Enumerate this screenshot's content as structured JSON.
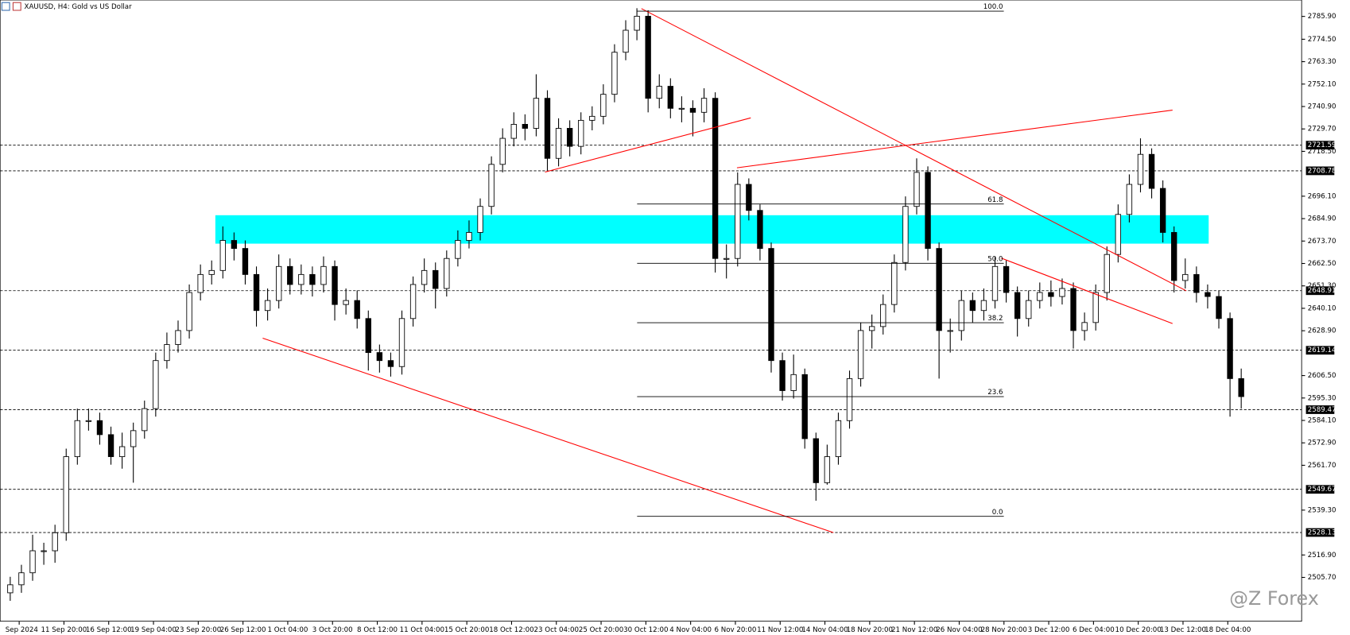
{
  "chart_data": {
    "type": "candlestick",
    "title": "XAUUSD, H4: Gold vs US Dollar",
    "watermark": "@Z Forex",
    "color": "#000000",
    "open": [
      2498,
      2502,
      2508,
      2519,
      2519,
      2528,
      2566,
      2584,
      2584,
      2577,
      2566,
      2571,
      2579,
      2590,
      2614,
      2622,
      2629,
      2648,
      2657,
      2659,
      2674,
      2670,
      2657,
      2639,
      2644,
      2661,
      2652,
      2657,
      2652,
      2661,
      2642,
      2644,
      2635,
      2618,
      2614,
      2611,
      2635,
      2652,
      2659,
      2650,
      2665,
      2674,
      2678,
      2691,
      2712,
      2725,
      2732,
      2730,
      2745,
      2715,
      2730,
      2721,
      2734,
      2736,
      2747,
      2768,
      2779,
      2786,
      2745,
      2751,
      2740,
      2740,
      2738,
      2745,
      2665,
      2665,
      2702,
      2689,
      2670,
      2614,
      2599,
      2607,
      2575,
      2553,
      2566,
      2584,
      2605,
      2629,
      2631,
      2642,
      2663,
      2691,
      2708,
      2670,
      2629,
      2629,
      2644,
      2639,
      2644,
      2661,
      2648,
      2635,
      2644,
      2648,
      2646,
      2650,
      2629,
      2633,
      2648,
      2667,
      2687,
      2702,
      2717,
      2700,
      2678,
      2654,
      2657,
      2648,
      2646,
      2635,
      2605
    ],
    "high": [
      2506,
      2512,
      2527,
      2523,
      2532,
      2570,
      2590,
      2590,
      2588,
      2581,
      2578,
      2583,
      2594,
      2618,
      2628,
      2634,
      2652,
      2662,
      2664,
      2681,
      2678,
      2674,
      2661,
      2650,
      2667,
      2665,
      2662,
      2661,
      2666,
      2664,
      2650,
      2649,
      2639,
      2622,
      2618,
      2639,
      2656,
      2665,
      2663,
      2669,
      2679,
      2684,
      2695,
      2716,
      2730,
      2738,
      2737,
      2757,
      2749,
      2735,
      2734,
      2738,
      2741,
      2752,
      2772,
      2784,
      2790,
      2789,
      2757,
      2755,
      2746,
      2744,
      2750,
      2748,
      2672,
      2708,
      2705,
      2692,
      2673,
      2618,
      2617,
      2610,
      2578,
      2572,
      2588,
      2609,
      2633,
      2637,
      2647,
      2667,
      2696,
      2715,
      2711,
      2673,
      2635,
      2649,
      2648,
      2650,
      2666,
      2664,
      2651,
      2649,
      2653,
      2654,
      2655,
      2653,
      2638,
      2652,
      2671,
      2692,
      2707,
      2725,
      2720,
      2704,
      2681,
      2665,
      2661,
      2652,
      2649,
      2638,
      2610
    ],
    "low": [
      2494,
      2498,
      2504,
      2512,
      2513,
      2524,
      2562,
      2579,
      2572,
      2562,
      2560,
      2553,
      2575,
      2586,
      2610,
      2618,
      2625,
      2644,
      2652,
      2655,
      2664,
      2652,
      2631,
      2634,
      2640,
      2647,
      2647,
      2646,
      2648,
      2634,
      2637,
      2630,
      2609,
      2608,
      2606,
      2607,
      2631,
      2648,
      2640,
      2646,
      2661,
      2670,
      2674,
      2687,
      2708,
      2721,
      2724,
      2726,
      2709,
      2711,
      2716,
      2717,
      2729,
      2732,
      2743,
      2764,
      2774,
      2738,
      2740,
      2735,
      2733,
      2726,
      2733,
      2658,
      2655,
      2661,
      2684,
      2664,
      2608,
      2594,
      2595,
      2570,
      2544,
      2552,
      2562,
      2580,
      2601,
      2620,
      2627,
      2638,
      2659,
      2687,
      2664,
      2605,
      2618,
      2624,
      2633,
      2634,
      2640,
      2643,
      2626,
      2631,
      2640,
      2641,
      2642,
      2620,
      2624,
      2629,
      2644,
      2663,
      2683,
      2698,
      2695,
      2673,
      2648,
      2650,
      2643,
      2640,
      2630,
      2586,
      2590
    ],
    "close": [
      2502,
      2508,
      2519,
      2519,
      2528,
      2566,
      2584,
      2584,
      2577,
      2566,
      2571,
      2579,
      2590,
      2614,
      2622,
      2629,
      2648,
      2657,
      2659,
      2674,
      2670,
      2657,
      2639,
      2644,
      2661,
      2652,
      2657,
      2652,
      2661,
      2642,
      2644,
      2635,
      2618,
      2614,
      2611,
      2635,
      2652,
      2659,
      2650,
      2665,
      2674,
      2678,
      2691,
      2712,
      2725,
      2732,
      2730,
      2745,
      2715,
      2730,
      2721,
      2734,
      2736,
      2747,
      2768,
      2779,
      2786,
      2745,
      2751,
      2740,
      2740,
      2738,
      2745,
      2665,
      2665,
      2702,
      2689,
      2670,
      2614,
      2599,
      2607,
      2575,
      2553,
      2566,
      2584,
      2605,
      2629,
      2631,
      2642,
      2663,
      2691,
      2708,
      2670,
      2629,
      2629,
      2644,
      2639,
      2644,
      2661,
      2648,
      2635,
      2644,
      2648,
      2646,
      2650,
      2629,
      2633,
      2648,
      2667,
      2687,
      2702,
      2717,
      2700,
      2678,
      2654,
      2657,
      2648,
      2646,
      2635,
      2605,
      2596
    ],
    "xlim": [
      -0.9,
      115.4
    ],
    "xticks": [
      {
        "value": 0.8,
        "label": "Sep 2024"
      },
      {
        "value": 4.8,
        "label": "11 Sep 20:00"
      },
      {
        "value": 8.8,
        "label": "16 Sep 12:00"
      },
      {
        "value": 12.8,
        "label": "19 Sep 04:00"
      },
      {
        "value": 16.8,
        "label": "23 Sep 20:00"
      },
      {
        "value": 20.8,
        "label": "26 Sep 12:00"
      },
      {
        "value": 24.8,
        "label": "1 Oct 04:00"
      },
      {
        "value": 28.8,
        "label": "3 Oct 20:00"
      },
      {
        "value": 32.8,
        "label": "8 Oct 12:00"
      },
      {
        "value": 36.8,
        "label": "11 Oct 04:00"
      },
      {
        "value": 40.8,
        "label": "15 Oct 20:00"
      },
      {
        "value": 44.8,
        "label": "18 Oct 12:00"
      },
      {
        "value": 48.8,
        "label": "23 Oct 04:00"
      },
      {
        "value": 52.8,
        "label": "25 Oct 20:00"
      },
      {
        "value": 56.8,
        "label": "30 Oct 12:00"
      },
      {
        "value": 60.8,
        "label": "4 Nov 04:00"
      },
      {
        "value": 64.8,
        "label": "6 Nov 20:00"
      },
      {
        "value": 68.8,
        "label": "11 Nov 12:00"
      },
      {
        "value": 72.8,
        "label": "14 Nov 04:00"
      },
      {
        "value": 76.8,
        "label": "18 Nov 20:00"
      },
      {
        "value": 80.8,
        "label": "21 Nov 12:00"
      },
      {
        "value": 84.8,
        "label": "26 Nov 04:00"
      },
      {
        "value": 88.8,
        "label": "28 Nov 20:00"
      },
      {
        "value": 92.8,
        "label": "3 Dec 12:00"
      },
      {
        "value": 96.8,
        "label": "6 Dec 04:00"
      },
      {
        "value": 100.8,
        "label": "10 Dec 20:00"
      },
      {
        "value": 104.8,
        "label": "13 Dec 12:00"
      },
      {
        "value": 108.8,
        "label": "18 Dec 04:00"
      }
    ],
    "ylim": [
      2483.8,
      2794.1
    ],
    "yticks": [
      {
        "value": 2785.9,
        "label": "2785.90"
      },
      {
        "value": 2774.5,
        "label": "2774.50"
      },
      {
        "value": 2763.3,
        "label": "2763.30"
      },
      {
        "value": 2752.1,
        "label": "2752.10"
      },
      {
        "value": 2740.9,
        "label": "2740.90"
      },
      {
        "value": 2729.7,
        "label": "2729.70"
      },
      {
        "value": 2718.5,
        "label": "2718.50"
      },
      {
        "value": 2696.1,
        "label": "2696.10"
      },
      {
        "value": 2684.9,
        "label": "2684.90"
      },
      {
        "value": 2673.7,
        "label": "2673.70"
      },
      {
        "value": 2662.5,
        "label": "2662.50"
      },
      {
        "value": 2651.3,
        "label": "2651.30"
      },
      {
        "value": 2640.1,
        "label": "2640.10"
      },
      {
        "value": 2628.9,
        "label": "2628.90"
      },
      {
        "value": 2606.5,
        "label": "2606.50"
      },
      {
        "value": 2595.3,
        "label": "2595.30"
      },
      {
        "value": 2584.1,
        "label": "2584.10"
      },
      {
        "value": 2572.9,
        "label": "2572.90"
      },
      {
        "value": 2561.7,
        "label": "2561.70"
      },
      {
        "value": 2539.3,
        "label": "2539.30"
      },
      {
        "value": 2516.9,
        "label": "2516.90"
      },
      {
        "value": 2505.7,
        "label": "2505.70"
      }
    ],
    "levels": [
      2721.59,
      2708.78,
      2648.91,
      2619.14,
      2589.47,
      2549.67,
      2528.13
    ],
    "zone": {
      "low": 2672.4,
      "high": 2686.6,
      "color": "#00ffff"
    },
    "fibonacci": [
      {
        "label": "100.0",
        "value": 2788.5
      },
      {
        "label": "61.8",
        "value": 2692.2
      },
      {
        "label": "50.0",
        "value": 2662.6
      },
      {
        "label": "38.2",
        "value": 2632.9
      },
      {
        "label": "23.6",
        "value": 2596.0
      },
      {
        "label": "0.0",
        "value": 2536.2
      }
    ]
  }
}
